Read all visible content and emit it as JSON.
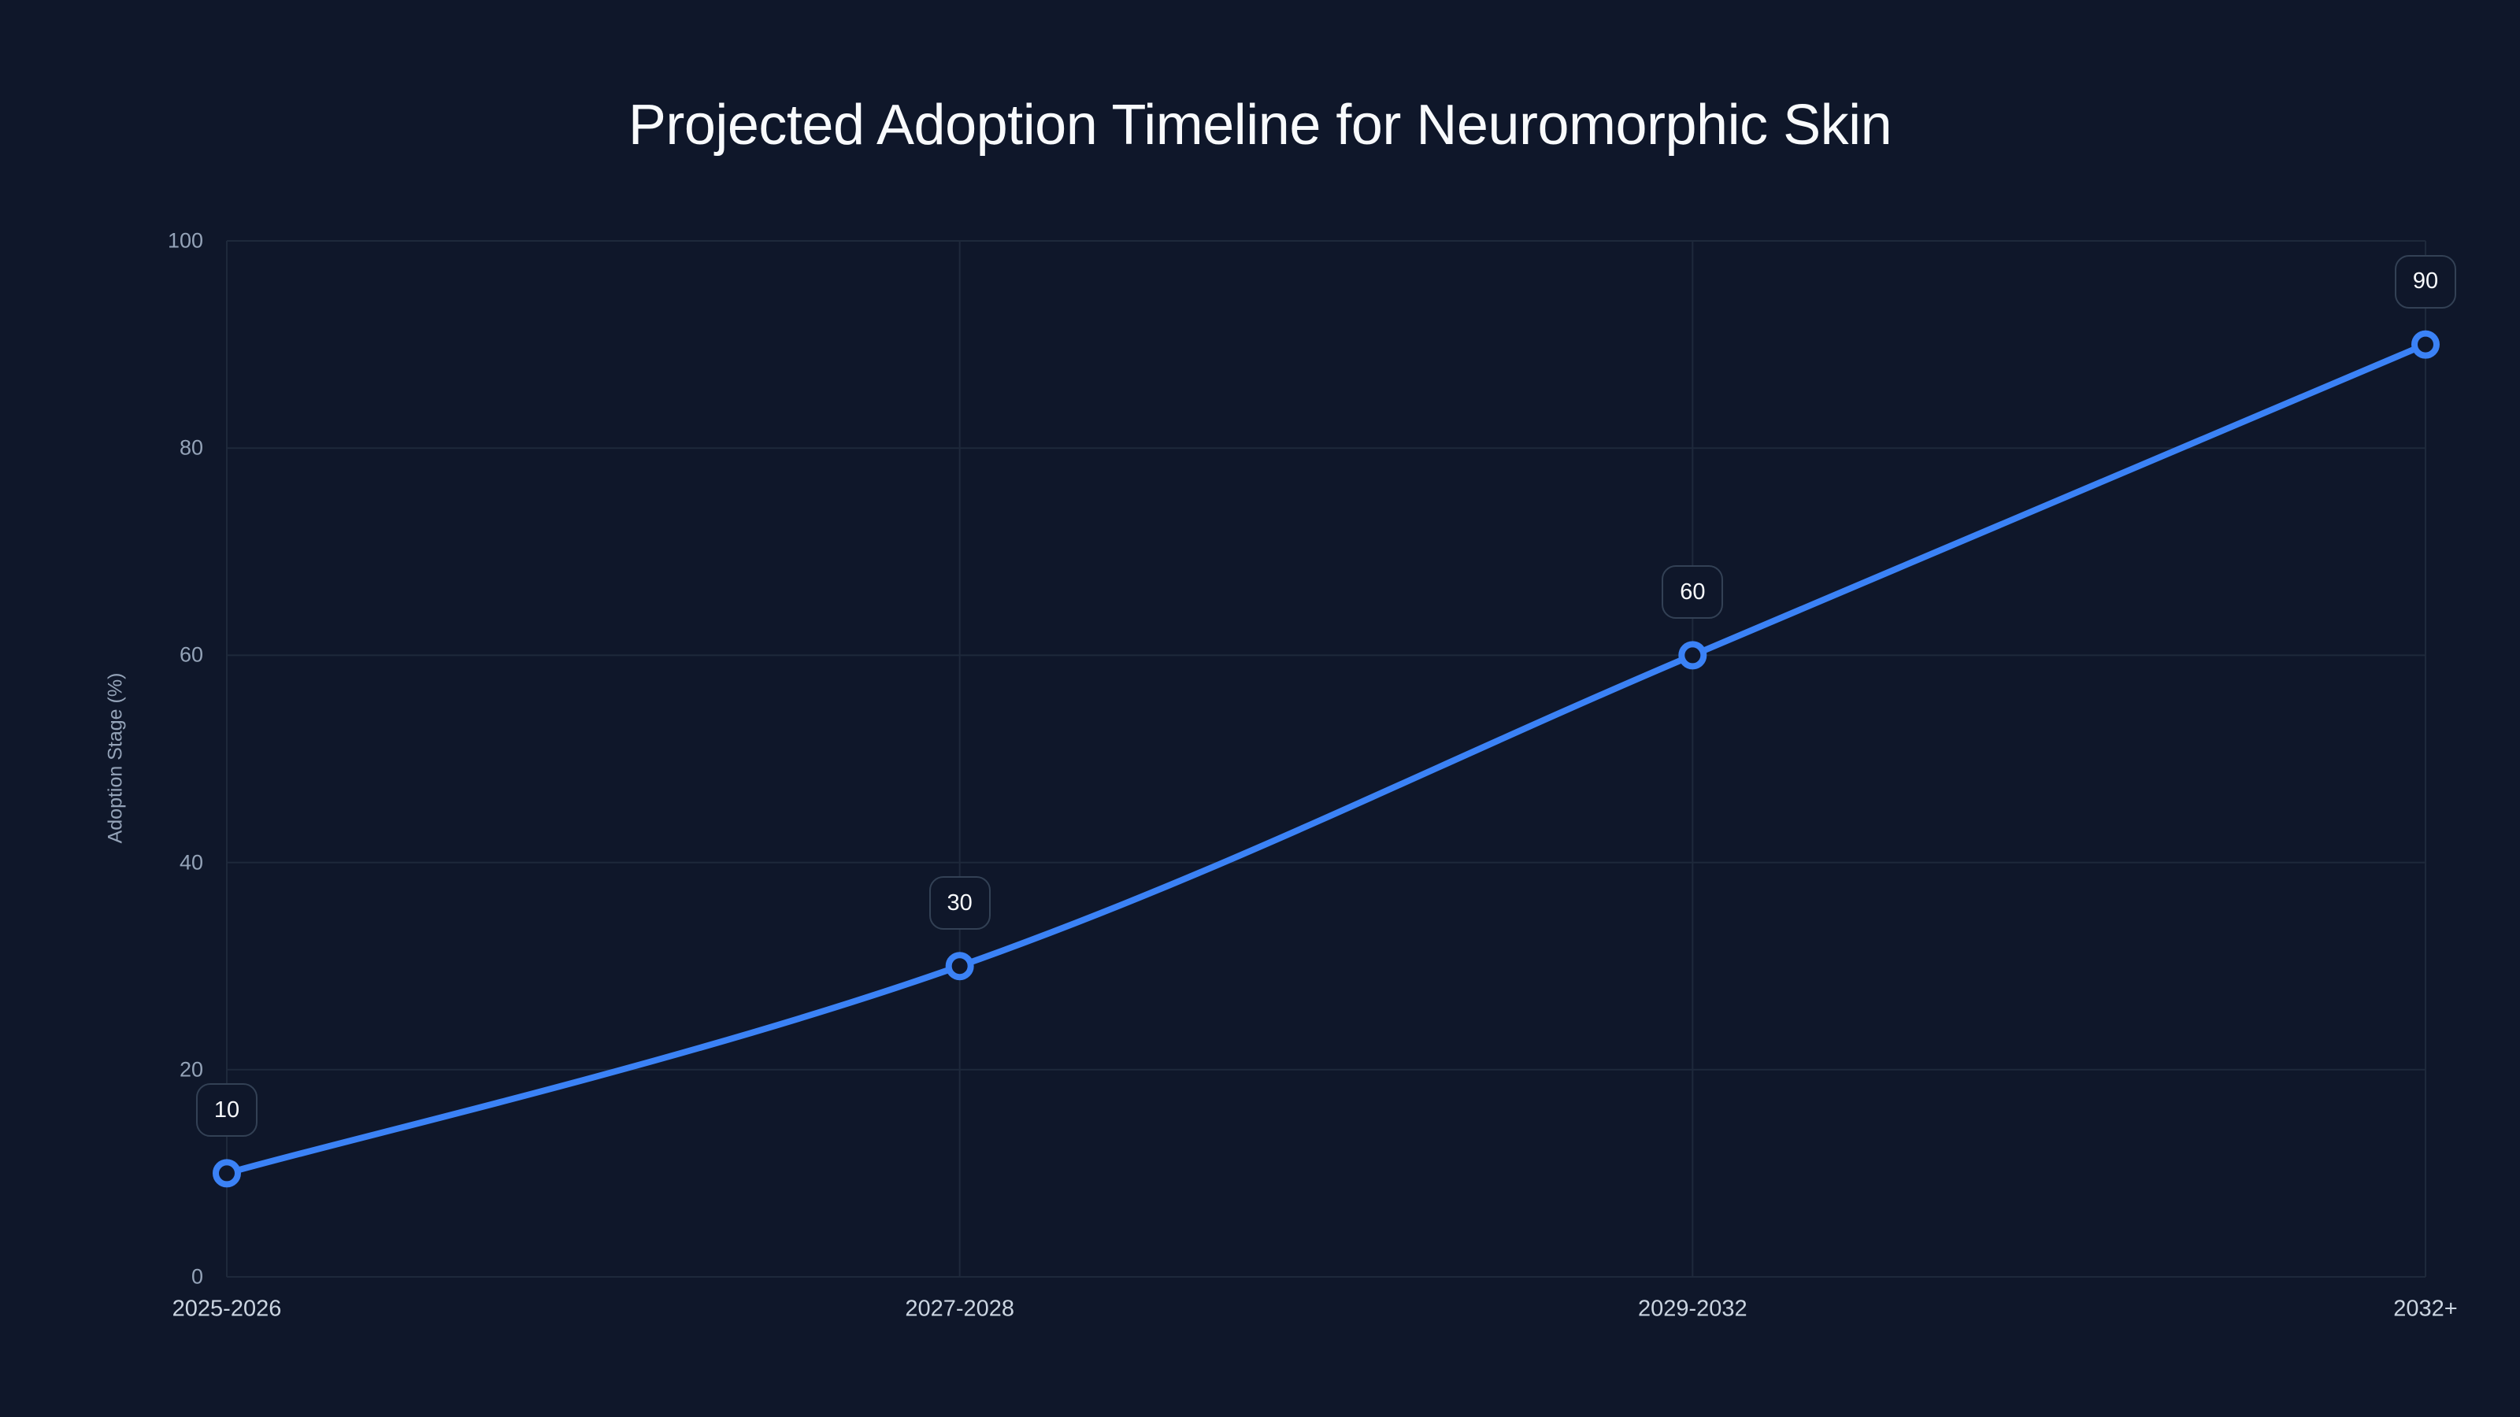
{
  "chart_data": {
    "type": "line",
    "title": "Projected Adoption Timeline for Neuromorphic Skin",
    "xlabel": "",
    "ylabel": "Adoption Stage (%)",
    "categories": [
      "2025-2026",
      "2027-2028",
      "2029-2032",
      "2032+"
    ],
    "series": [
      {
        "name": "Adoption Stage",
        "values": [
          10,
          30,
          60,
          90
        ],
        "color": "#3b82f6"
      }
    ],
    "data_labels": [
      "10",
      "30",
      "60",
      "90"
    ],
    "ylim": [
      0,
      100
    ],
    "yticks": [
      "0",
      "20",
      "40",
      "60",
      "80",
      "100"
    ],
    "grid": true,
    "legend": null,
    "curve": "smooth"
  },
  "colors": {
    "background": "#0f172a",
    "line": "#3b82f6",
    "grid": "#1e293b",
    "tick_text": "#94a3b8",
    "label_border": "#334155"
  }
}
